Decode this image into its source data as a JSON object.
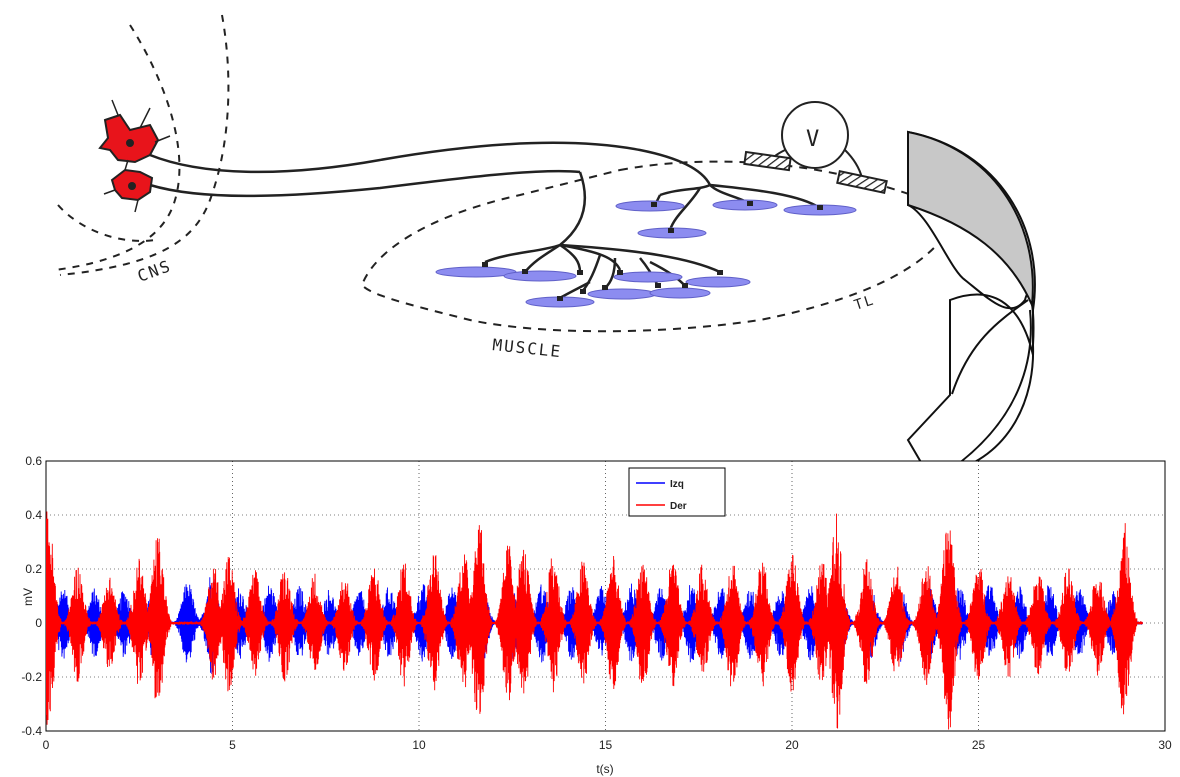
{
  "diagram": {
    "labels": {
      "cns": "CNS",
      "muscle": "MUSCLE",
      "tl": "TL",
      "voltmeter": "V"
    },
    "colors": {
      "neuron": "#e8141b",
      "fiber": "#8c8cf0",
      "arrow_fill": "#c8c8c8"
    }
  },
  "chart_data": {
    "type": "line",
    "xlabel": "t(s)",
    "ylabel": "mV",
    "xlim": [
      0,
      30
    ],
    "ylim": [
      -0.4,
      0.6
    ],
    "xticks": [
      0,
      5,
      10,
      15,
      20,
      25,
      30
    ],
    "yticks": [
      -0.4,
      -0.2,
      0,
      0.2,
      0.4,
      0.6
    ],
    "grid": true,
    "legend_position": "top-center",
    "series": [
      {
        "name": "Izq",
        "color": "#0000ff",
        "burst_times": [
          0.45,
          1.3,
          2.1,
          2.9,
          3.8,
          4.45,
          5.2,
          6.0,
          6.8,
          7.6,
          8.4,
          9.2,
          10.1,
          10.9,
          11.7,
          12.5,
          13.3,
          14.1,
          14.9,
          15.7,
          16.5,
          17.3,
          18.1,
          18.9,
          19.7,
          20.5,
          21.3,
          22.1,
          22.9,
          23.7,
          24.5,
          25.3,
          26.1,
          26.9,
          27.7,
          28.6
        ],
        "burst_amplitudes": [
          0.14,
          0.13,
          0.13,
          0.15,
          0.16,
          0.2,
          0.14,
          0.15,
          0.14,
          0.13,
          0.13,
          0.14,
          0.15,
          0.14,
          0.15,
          0.14,
          0.15,
          0.14,
          0.14,
          0.15,
          0.14,
          0.15,
          0.14,
          0.14,
          0.13,
          0.14,
          0.13,
          0.14,
          0.15,
          0.14,
          0.14,
          0.15,
          0.14,
          0.15,
          0.14,
          0.12
        ]
      },
      {
        "name": "Der",
        "color": "#ff0000",
        "burst_times": [
          0.05,
          0.85,
          1.7,
          2.5,
          3.0,
          4.5,
          4.9,
          5.6,
          6.4,
          7.2,
          8.0,
          8.8,
          9.6,
          10.4,
          11.2,
          11.6,
          12.4,
          12.8,
          13.6,
          14.4,
          15.2,
          16.0,
          16.8,
          17.6,
          18.4,
          19.2,
          20.0,
          20.8,
          21.2,
          22.0,
          22.8,
          23.6,
          24.2,
          25.0,
          25.8,
          26.6,
          27.4,
          28.2,
          28.9
        ],
        "burst_amplitudes": [
          0.43,
          0.22,
          0.18,
          0.24,
          0.33,
          0.22,
          0.26,
          0.2,
          0.22,
          0.19,
          0.18,
          0.22,
          0.24,
          0.28,
          0.27,
          0.4,
          0.3,
          0.29,
          0.26,
          0.24,
          0.25,
          0.25,
          0.24,
          0.22,
          0.25,
          0.24,
          0.26,
          0.24,
          0.41,
          0.24,
          0.22,
          0.23,
          0.41,
          0.23,
          0.21,
          0.2,
          0.21,
          0.2,
          0.38
        ]
      }
    ]
  }
}
